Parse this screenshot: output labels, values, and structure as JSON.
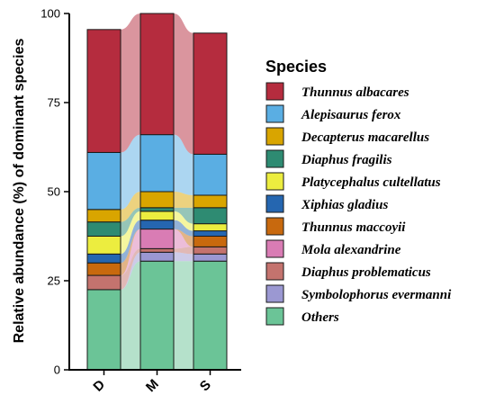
{
  "chart_data": {
    "type": "bar",
    "stacked": true,
    "percent": true,
    "categories": [
      "D",
      "M",
      "S"
    ],
    "ylabel": "Relative abundance (%) of dominant species",
    "ylim": [
      0,
      100
    ],
    "yticks": [
      0,
      25,
      50,
      75,
      100
    ],
    "legend_title": "Species",
    "legend_position": "right",
    "series": [
      {
        "name": "Others",
        "color": "#6bc497",
        "values": [
          22.5,
          30.5,
          30.5
        ]
      },
      {
        "name": "Symbolophorus evermanni",
        "color": "#9b98d2",
        "values": [
          0,
          2.5,
          2.0
        ]
      },
      {
        "name": "Diaphus problematicus",
        "color": "#c4736e",
        "values": [
          4.0,
          1.0,
          2.0
        ]
      },
      {
        "name": "Mola alexandrine",
        "color": "#d97cb4",
        "values": [
          0,
          5.5,
          0
        ]
      },
      {
        "name": "Thunnus maccoyii",
        "color": "#c8690e",
        "values": [
          3.5,
          0,
          3.0
        ]
      },
      {
        "name": "Xiphias gladius",
        "color": "#2566b0",
        "values": [
          2.5,
          2.5,
          1.5
        ]
      },
      {
        "name": "Platycephalus cultellatus",
        "color": "#eced3f",
        "values": [
          5.0,
          2.5,
          2.0
        ]
      },
      {
        "name": "Diaphus fragilis",
        "color": "#2e8b72",
        "values": [
          4.0,
          1.0,
          4.5
        ]
      },
      {
        "name": "Decapterus macarellus",
        "color": "#d9a500",
        "values": [
          3.5,
          4.5,
          3.5
        ]
      },
      {
        "name": "Alepisaurus ferox",
        "color": "#5aaee3",
        "values": [
          16.0,
          16.0,
          11.5
        ]
      },
      {
        "name": "Thunnus albacares",
        "color": "#b52c3e",
        "values": [
          34.5,
          34.0,
          34.0
        ]
      }
    ],
    "legend_order": [
      "Thunnus albacares",
      "Alepisaurus ferox",
      "Decapterus macarellus",
      "Diaphus fragilis",
      "Platycephalus cultellatus",
      "Xiphias gladius",
      "Thunnus maccoyii",
      "Mola alexandrine",
      "Diaphus problematicus",
      "Symbolophorus evermanni",
      "Others"
    ]
  }
}
